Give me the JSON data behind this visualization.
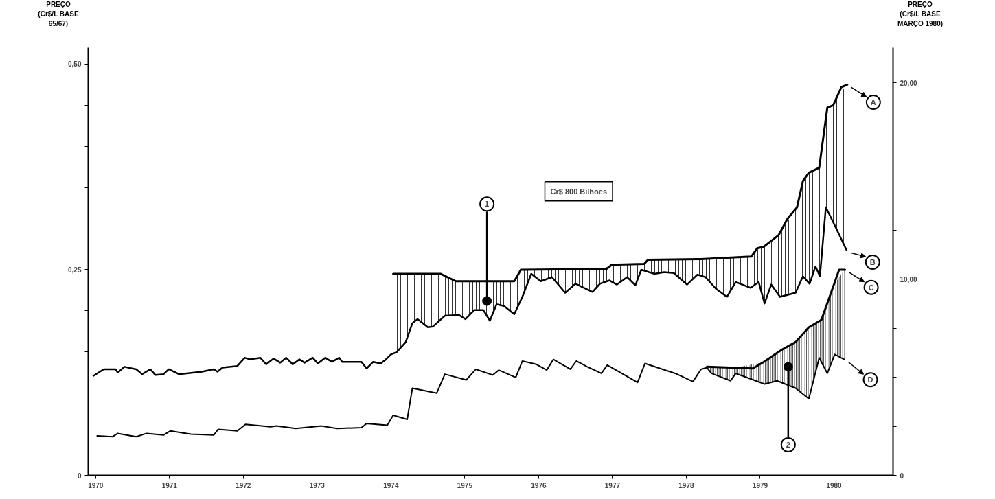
{
  "chart_data": {
    "type": "line",
    "ylabel": "PREÇO\n(Cr$/L BASE\n65/67)",
    "y2label": "PREÇO\n(Cr$/L BASE\nMARÇO 1980)",
    "xlim": [
      1969.9,
      1980.8
    ],
    "xticks": [
      1970,
      1971,
      1972,
      1973,
      1974,
      1975,
      1976,
      1977,
      1978,
      1979,
      1980
    ],
    "ylim": [
      0,
      0.52
    ],
    "yticks": [
      {
        "value": 0,
        "label": "0"
      },
      {
        "value": 0.05,
        "label": null
      },
      {
        "value": 0.1,
        "label": null
      },
      {
        "value": 0.15,
        "label": null
      },
      {
        "value": 0.2,
        "label": null
      },
      {
        "value": 0.25,
        "label": "0,25"
      },
      {
        "value": 0.3,
        "label": null
      },
      {
        "value": 0.35,
        "label": null
      },
      {
        "value": 0.4,
        "label": null
      },
      {
        "value": 0.45,
        "label": null
      },
      {
        "value": 0.5,
        "label": "0,50"
      }
    ],
    "y2lim": [
      0,
      21.8
    ],
    "y2ticks": [
      {
        "value": 0,
        "label": "0"
      },
      {
        "value": 2.5,
        "label": null
      },
      {
        "value": 5,
        "label": null
      },
      {
        "value": 7.5,
        "label": null
      },
      {
        "value": 10,
        "label": "10,00"
      },
      {
        "value": 12.5,
        "label": null
      },
      {
        "value": 15,
        "label": null
      },
      {
        "value": 17.5,
        "label": null
      },
      {
        "value": 20,
        "label": "20,00"
      }
    ],
    "grid": false,
    "marker": "none",
    "line_style": "solid",
    "series": [
      {
        "color": "#000000",
        "x": [
          1974.03,
          1974.67,
          1974.88,
          1975.67,
          1975.76,
          1976.92,
          1976.99,
          1977.43,
          1977.48,
          1978.2,
          1978.88,
          1978.96,
          1979.05,
          1979.25,
          1979.37,
          1979.5,
          1979.58,
          1979.66,
          1979.8,
          1979.91,
          1979.99,
          1980.1,
          1980.18
        ],
        "values": [
          0.245,
          0.245,
          0.236,
          0.236,
          0.25,
          0.251,
          0.256,
          0.257,
          0.262,
          0.263,
          0.266,
          0.276,
          0.278,
          0.292,
          0.312,
          0.326,
          0.358,
          0.368,
          0.374,
          0.447,
          0.45,
          0.472,
          0.475
        ]
      },
      {
        "color": "#000000",
        "x": [
          1969.97,
          1970.11,
          1970.27,
          1970.3,
          1970.39,
          1970.55,
          1970.63,
          1970.74,
          1970.81,
          1970.92,
          1970.99,
          1971.13,
          1971.44,
          1971.6,
          1971.65,
          1971.72,
          1971.92,
          1972.02,
          1972.09,
          1972.23,
          1972.31,
          1972.41,
          1972.5,
          1972.58,
          1972.67,
          1972.76,
          1972.83,
          1972.94,
          1973.01,
          1973.11,
          1973.2,
          1973.3,
          1973.34,
          1973.6,
          1973.67,
          1973.76,
          1973.86,
          1973.92,
          1974.0,
          1974.08,
          1974.2,
          1974.29,
          1974.36,
          1974.5,
          1974.57,
          1974.73,
          1974.92,
          1975.01,
          1975.13,
          1975.25,
          1975.34,
          1975.43,
          1975.53,
          1975.67,
          1975.78,
          1975.9,
          1976.03,
          1976.18,
          1976.36,
          1976.5,
          1976.59,
          1976.73,
          1976.83,
          1976.96,
          1977.06,
          1977.2,
          1977.31,
          1977.39,
          1977.57,
          1977.7,
          1977.83,
          1978.01,
          1978.15,
          1978.26,
          1978.4,
          1978.55,
          1978.67,
          1978.87,
          1978.98,
          1979.06,
          1979.15,
          1979.27,
          1979.48,
          1979.58,
          1979.67,
          1979.75,
          1979.81,
          1979.89,
          1980.01,
          1980.17
        ],
        "values": [
          0.121,
          0.129,
          0.129,
          0.125,
          0.132,
          0.129,
          0.123,
          0.129,
          0.122,
          0.123,
          0.129,
          0.123,
          0.126,
          0.129,
          0.126,
          0.131,
          0.133,
          0.143,
          0.141,
          0.143,
          0.135,
          0.142,
          0.137,
          0.143,
          0.135,
          0.141,
          0.137,
          0.143,
          0.136,
          0.143,
          0.138,
          0.143,
          0.138,
          0.138,
          0.13,
          0.138,
          0.136,
          0.14,
          0.147,
          0.15,
          0.162,
          0.185,
          0.19,
          0.18,
          0.181,
          0.194,
          0.195,
          0.19,
          0.201,
          0.201,
          0.188,
          0.208,
          0.206,
          0.196,
          0.217,
          0.245,
          0.236,
          0.241,
          0.222,
          0.233,
          0.229,
          0.223,
          0.233,
          0.237,
          0.232,
          0.241,
          0.231,
          0.25,
          0.245,
          0.247,
          0.246,
          0.232,
          0.244,
          0.241,
          0.227,
          0.217,
          0.235,
          0.228,
          0.235,
          0.209,
          0.232,
          0.217,
          0.222,
          0.242,
          0.233,
          0.254,
          0.242,
          0.326,
          0.304,
          0.274
        ],
        "lower": [
          null,
          null,
          null,
          null,
          null,
          null,
          null,
          null,
          null,
          null,
          null,
          null,
          null,
          null,
          null,
          null,
          null,
          null,
          null,
          null,
          null,
          null,
          null,
          null,
          null,
          null,
          null,
          null,
          null,
          null,
          null,
          null,
          null,
          null,
          null,
          null,
          null,
          null,
          null,
          0.15,
          0.162,
          0.185,
          0.19,
          0.18,
          0.181,
          0.194,
          0.195,
          0.19,
          0.201,
          0.201,
          0.188,
          0.208,
          0.206,
          0.196,
          0.217,
          0.245,
          0.236,
          0.241,
          0.222,
          0.233,
          0.229,
          0.223,
          0.233,
          0.237,
          0.232,
          0.241,
          0.231,
          0.25,
          0.245,
          0.247,
          0.246,
          0.232,
          0.244,
          0.241,
          0.227,
          0.217,
          0.235,
          0.228,
          0.235,
          0.209,
          0.232,
          0.217,
          0.222,
          0.242,
          0.233,
          0.254,
          0.242,
          0.326,
          0.304,
          0.274
        ],
        "upper": [
          null,
          null,
          null,
          null,
          null,
          null,
          null,
          null,
          null,
          null,
          null,
          null,
          null,
          null,
          null,
          null,
          null,
          null,
          null,
          null,
          null,
          null,
          null,
          null,
          null,
          null,
          null,
          null,
          null,
          null,
          null,
          null,
          null,
          null,
          null,
          null,
          null,
          null,
          null,
          0.245,
          0.245,
          0.245,
          0.245,
          0.245,
          0.245,
          0.242,
          0.236,
          0.236,
          0.236,
          0.236,
          0.236,
          0.236,
          0.236,
          0.236,
          0.25,
          0.25,
          0.25,
          0.25,
          0.25,
          0.25,
          0.25,
          0.251,
          0.251,
          0.254,
          0.256,
          0.256,
          0.257,
          0.257,
          0.262,
          0.262,
          0.262,
          0.263,
          0.263,
          0.263,
          0.264,
          0.264,
          0.265,
          0.266,
          0.276,
          0.279,
          0.285,
          0.295,
          0.324,
          0.358,
          0.368,
          0.372,
          0.381,
          0.434,
          0.454,
          0.475
        ]
      },
      {
        "color": "#000000",
        "x": [
          1978.28,
          1978.9,
          1979.05,
          1979.28,
          1979.48,
          1979.66,
          1979.83,
          1979.96,
          1980.07,
          1980.15
        ],
        "values": [
          0.132,
          0.13,
          0.138,
          0.152,
          0.162,
          0.18,
          0.189,
          0.222,
          0.25,
          0.25
        ]
      },
      {
        "color": "#000000",
        "x": [
          1970.02,
          1970.23,
          1970.3,
          1970.55,
          1970.69,
          1970.92,
          1971.01,
          1971.29,
          1971.6,
          1971.66,
          1971.92,
          1972.03,
          1972.37,
          1972.45,
          1972.71,
          1973.06,
          1973.27,
          1973.6,
          1973.67,
          1973.95,
          1974.03,
          1974.22,
          1974.29,
          1974.62,
          1974.73,
          1975.02,
          1975.15,
          1975.38,
          1975.46,
          1975.69,
          1975.78,
          1975.97,
          1976.11,
          1976.2,
          1976.43,
          1976.51,
          1976.66,
          1976.85,
          1976.93,
          1977.34,
          1977.44,
          1977.85,
          1978.09,
          1978.2,
          1978.28,
          1978.34,
          1978.6,
          1978.67,
          1979.06,
          1979.23,
          1979.48,
          1979.66,
          1979.8,
          1979.91,
          1980.01,
          1980.14
        ],
        "values": [
          0.048,
          0.047,
          0.051,
          0.047,
          0.051,
          0.049,
          0.054,
          0.05,
          0.049,
          0.056,
          0.054,
          0.062,
          0.059,
          0.06,
          0.057,
          0.06,
          0.057,
          0.058,
          0.063,
          0.061,
          0.073,
          0.068,
          0.106,
          0.1,
          0.123,
          0.116,
          0.129,
          0.122,
          0.128,
          0.119,
          0.139,
          0.135,
          0.128,
          0.141,
          0.129,
          0.139,
          0.132,
          0.124,
          0.134,
          0.113,
          0.136,
          0.124,
          0.114,
          0.129,
          0.131,
          0.124,
          0.115,
          0.124,
          0.111,
          0.115,
          0.106,
          0.093,
          0.143,
          0.124,
          0.147,
          0.141
        ],
        "lower": [
          null,
          null,
          null,
          null,
          null,
          null,
          null,
          null,
          null,
          null,
          null,
          null,
          null,
          null,
          null,
          null,
          null,
          null,
          null,
          null,
          null,
          null,
          null,
          null,
          null,
          null,
          null,
          null,
          null,
          null,
          null,
          null,
          null,
          null,
          null,
          null,
          null,
          null,
          null,
          null,
          null,
          null,
          null,
          null,
          0.131,
          0.124,
          0.115,
          0.124,
          0.111,
          0.115,
          0.106,
          0.093,
          0.143,
          0.124,
          0.147,
          0.141
        ],
        "upper": [
          null,
          null,
          null,
          null,
          null,
          null,
          null,
          null,
          null,
          null,
          null,
          null,
          null,
          null,
          null,
          null,
          null,
          null,
          null,
          null,
          null,
          null,
          null,
          null,
          null,
          null,
          null,
          null,
          null,
          null,
          null,
          null,
          null,
          null,
          null,
          null,
          null,
          null,
          null,
          null,
          null,
          null,
          null,
          null,
          0.132,
          0.132,
          0.131,
          0.131,
          0.138,
          0.149,
          0.162,
          0.18,
          0.187,
          0.209,
          0.233,
          0.25
        ]
      }
    ],
    "annotations": [
      {
        "text": "A",
        "x": 1980.18,
        "y": 0.475
      },
      {
        "text": "B",
        "x": 1980.17,
        "y": 0.274
      },
      {
        "text": "C",
        "x": 1980.15,
        "y": 0.25
      },
      {
        "text": "D",
        "x": 1980.14,
        "y": 0.141
      },
      {
        "text": "1",
        "x": 1975.3,
        "y": 0.212
      },
      {
        "text": "2",
        "x": 1979.38,
        "y": 0.132
      },
      "Cr$ 800 Bilhões"
    ]
  }
}
